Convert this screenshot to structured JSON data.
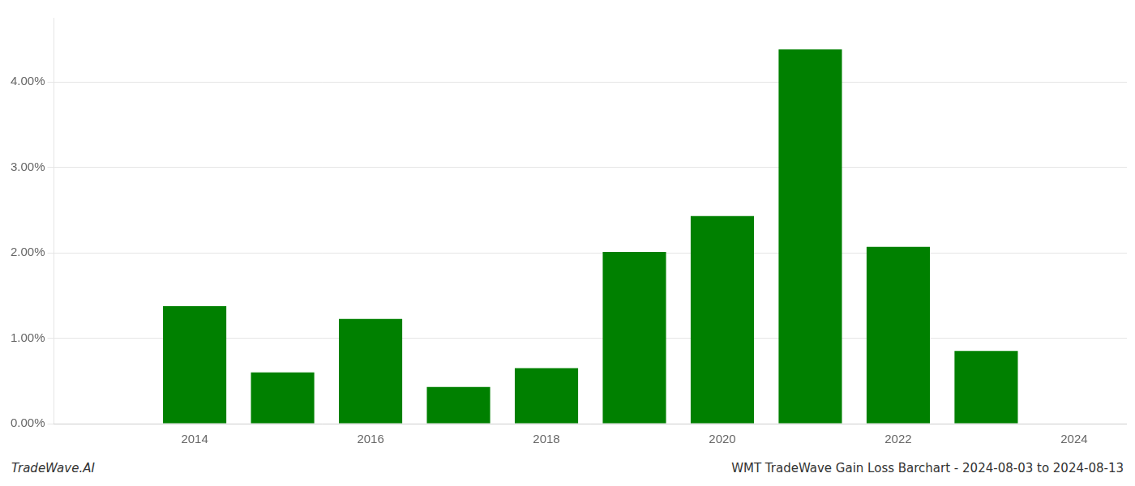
{
  "chart_data": {
    "type": "bar",
    "x": [
      2013,
      2014,
      2015,
      2016,
      2017,
      2018,
      2019,
      2020,
      2021,
      2022,
      2023
    ],
    "values": [
      0.0,
      0.01375,
      0.006,
      0.01225,
      0.0043,
      0.0065,
      0.0201,
      0.0243,
      0.0438,
      0.0207,
      0.0085
    ],
    "color": "#008000",
    "xlim": [
      2012.4,
      2024.6
    ],
    "xticks": [
      2014,
      2016,
      2018,
      2020,
      2022,
      2024
    ],
    "ylim": [
      0,
      0.0475
    ],
    "yticks": [
      {
        "value": 0.0,
        "label": "0.00%"
      },
      {
        "value": 0.01,
        "label": "1.00%"
      },
      {
        "value": 0.02,
        "label": "2.00%"
      },
      {
        "value": 0.03,
        "label": "3.00%"
      },
      {
        "value": 0.04,
        "label": "4.00%"
      }
    ],
    "grid": true,
    "annotations": [
      "TradeWave.AI",
      "WMT TradeWave Gain Loss Barchart - 2024-08-03 to 2024-08-13"
    ]
  }
}
